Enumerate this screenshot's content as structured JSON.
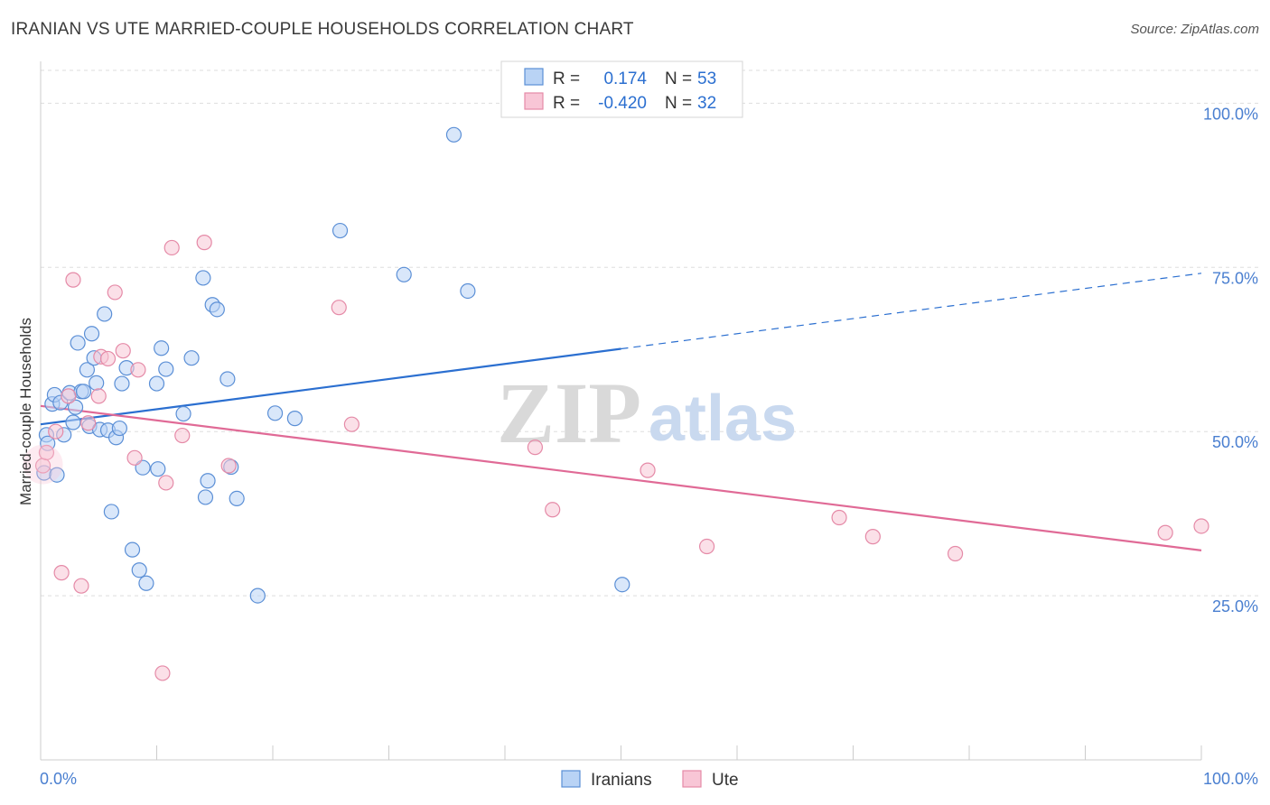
{
  "title": "IRANIAN VS UTE MARRIED-COUPLE HOUSEHOLDS CORRELATION CHART",
  "source": "Source: ZipAtlas.com",
  "watermark": {
    "zip": "ZIP",
    "atlas": "atlas"
  },
  "colors": {
    "iranians_fill": "#b9d3f5",
    "iranians_stroke": "#5b8fd6",
    "iranians_line": "#2b6fd0",
    "ute_fill": "#f8c6d6",
    "ute_stroke": "#e58aa7",
    "ute_line": "#e06a96",
    "grid": "#dddddd",
    "tick_text": "#4a7fd0"
  },
  "legend_box": {
    "rows": [
      {
        "r_label": "R =",
        "r_value": "0.174",
        "n_label": "N =",
        "n_value": "53"
      },
      {
        "r_label": "R =",
        "r_value": "-0.420",
        "n_label": "N =",
        "n_value": "32"
      }
    ]
  },
  "bottom_legend": [
    "Iranians",
    "Ute"
  ],
  "chart_data": {
    "type": "scatter",
    "title": "IRANIAN VS UTE MARRIED-COUPLE HOUSEHOLDS CORRELATION CHART",
    "xlabel": "",
    "ylabel": "Married-couple Households",
    "xlim": [
      0,
      100
    ],
    "ylim": [
      0,
      105
    ],
    "x_tick_labels": [
      "0.0%",
      "100.0%"
    ],
    "y_ticks": [
      25,
      50,
      75,
      100
    ],
    "y_tick_labels": [
      "25.0%",
      "50.0%",
      "75.0%",
      "100.0%"
    ],
    "grid": true,
    "series": [
      {
        "name": "Iranians",
        "R": 0.174,
        "N": 53,
        "trend": {
          "x0": 0,
          "y0": 51.1,
          "x1": 50,
          "y1": 62.6,
          "dashed_to_x": 100,
          "dashed_to_y": 74.1
        },
        "points": [
          [
            0.3,
            43.7
          ],
          [
            0.5,
            49.5
          ],
          [
            0.6,
            48.2
          ],
          [
            1.0,
            54.2
          ],
          [
            1.2,
            55.6
          ],
          [
            1.4,
            43.4
          ],
          [
            1.7,
            54.4
          ],
          [
            2.0,
            49.5
          ],
          [
            2.5,
            55.9
          ],
          [
            2.8,
            51.4
          ],
          [
            3.0,
            53.7
          ],
          [
            3.2,
            63.5
          ],
          [
            3.5,
            56.1
          ],
          [
            3.7,
            56.1
          ],
          [
            4.0,
            59.4
          ],
          [
            4.2,
            50.8
          ],
          [
            4.4,
            64.9
          ],
          [
            4.6,
            61.2
          ],
          [
            4.8,
            57.4
          ],
          [
            5.1,
            50.3
          ],
          [
            5.5,
            67.9
          ],
          [
            5.8,
            50.2
          ],
          [
            6.1,
            37.8
          ],
          [
            6.5,
            49.1
          ],
          [
            6.8,
            50.5
          ],
          [
            7.0,
            57.3
          ],
          [
            7.4,
            59.7
          ],
          [
            7.9,
            32.0
          ],
          [
            8.5,
            28.9
          ],
          [
            8.8,
            44.5
          ],
          [
            9.1,
            26.9
          ],
          [
            10.0,
            57.3
          ],
          [
            10.1,
            44.3
          ],
          [
            10.4,
            62.7
          ],
          [
            10.8,
            59.5
          ],
          [
            12.3,
            52.7
          ],
          [
            13.0,
            61.2
          ],
          [
            14.0,
            73.4
          ],
          [
            14.2,
            40.0
          ],
          [
            14.4,
            42.5
          ],
          [
            14.8,
            69.3
          ],
          [
            15.2,
            68.6
          ],
          [
            16.1,
            58.0
          ],
          [
            16.4,
            44.6
          ],
          [
            16.9,
            39.8
          ],
          [
            18.7,
            25.0
          ],
          [
            20.2,
            52.8
          ],
          [
            21.9,
            52.0
          ],
          [
            25.8,
            80.6
          ],
          [
            31.3,
            73.9
          ],
          [
            35.6,
            95.2
          ],
          [
            36.8,
            71.4
          ],
          [
            50.1,
            26.7
          ]
        ]
      },
      {
        "name": "Ute",
        "R": -0.42,
        "N": 32,
        "trend": {
          "x0": 0,
          "y0": 53.9,
          "x1": 100,
          "y1": 31.9
        },
        "points": [
          [
            0.2,
            44.8
          ],
          [
            0.5,
            46.8
          ],
          [
            1.3,
            50.0
          ],
          [
            1.8,
            28.5
          ],
          [
            2.4,
            55.4
          ],
          [
            2.8,
            73.1
          ],
          [
            3.5,
            26.5
          ],
          [
            4.1,
            51.3
          ],
          [
            5.0,
            55.4
          ],
          [
            5.2,
            61.4
          ],
          [
            5.8,
            61.1
          ],
          [
            6.4,
            71.2
          ],
          [
            7.1,
            62.3
          ],
          [
            8.1,
            46.0
          ],
          [
            8.4,
            59.4
          ],
          [
            10.5,
            13.2
          ],
          [
            10.8,
            42.2
          ],
          [
            11.3,
            78.0
          ],
          [
            12.2,
            49.4
          ],
          [
            14.1,
            78.8
          ],
          [
            16.2,
            44.8
          ],
          [
            25.7,
            68.9
          ],
          [
            26.8,
            51.1
          ],
          [
            42.6,
            47.6
          ],
          [
            44.1,
            38.1
          ],
          [
            52.3,
            44.1
          ],
          [
            57.4,
            32.5
          ],
          [
            68.8,
            36.9
          ],
          [
            71.7,
            34.0
          ],
          [
            78.8,
            31.4
          ],
          [
            96.9,
            34.6
          ],
          [
            100.0,
            35.6
          ]
        ]
      }
    ]
  }
}
